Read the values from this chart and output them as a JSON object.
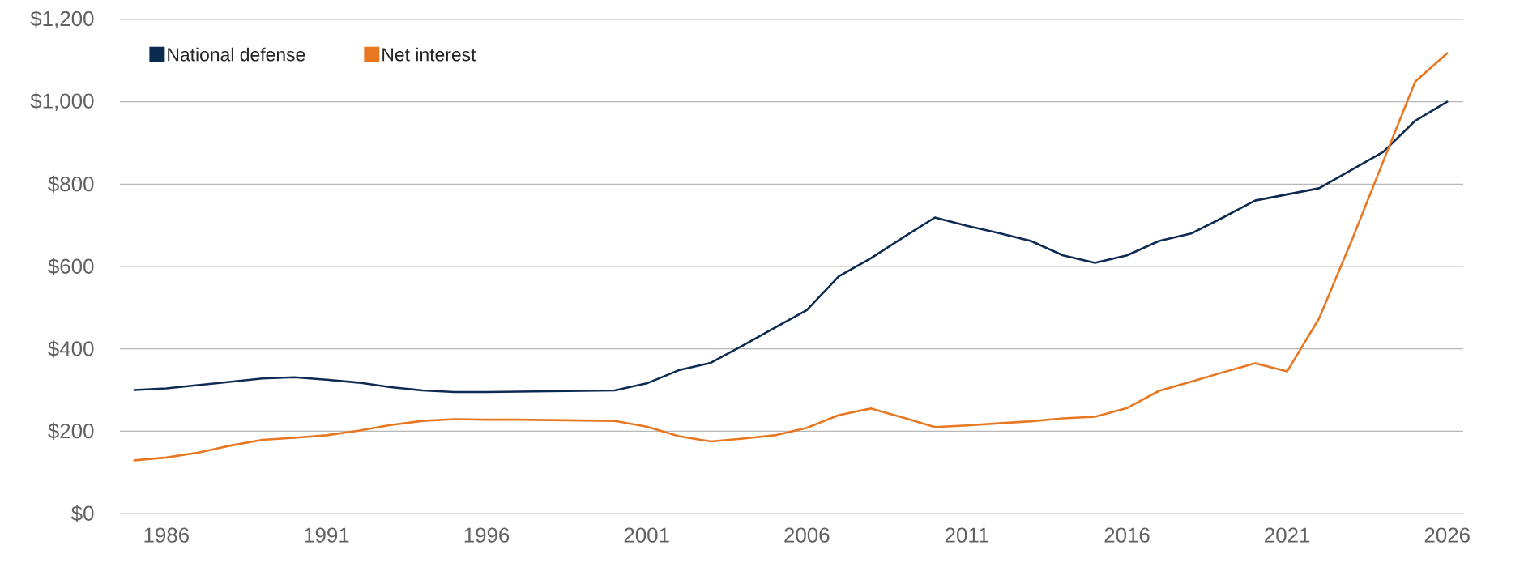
{
  "chart_data": {
    "type": "line",
    "x": [
      1985,
      1986,
      1987,
      1988,
      1989,
      1990,
      1991,
      1992,
      1993,
      1994,
      1995,
      1996,
      1997,
      1998,
      1999,
      2000,
      2001,
      2002,
      2003,
      2004,
      2005,
      2006,
      2007,
      2008,
      2009,
      2010,
      2011,
      2012,
      2013,
      2014,
      2015,
      2016,
      2017,
      2018,
      2019,
      2020,
      2021,
      2022,
      2023,
      2024,
      2025,
      2026
    ],
    "series": [
      {
        "name": "National defense",
        "color": "#0d2b52",
        "values": [
          300,
          304,
          312,
          320,
          328,
          331,
          325,
          318,
          307,
          299,
          295,
          295,
          296,
          297,
          298,
          299,
          316,
          348,
          366,
          408,
          451,
          494,
          576,
          620,
          670,
          719,
          699,
          681,
          662,
          627,
          609,
          627,
          662,
          680,
          719,
          760,
          775,
          790,
          834,
          878,
          954,
          1000
        ]
      },
      {
        "name": "Net interest",
        "color": "#e87722",
        "values": [
          129,
          136,
          148,
          165,
          179,
          184,
          190,
          201,
          215,
          225,
          229,
          228,
          228,
          227,
          226,
          225,
          211,
          188,
          175,
          182,
          190,
          208,
          239,
          255,
          233,
          210,
          214,
          219,
          224,
          231,
          235,
          256,
          298,
          320,
          343,
          365,
          345,
          474,
          660,
          855,
          1049,
          1118
        ]
      }
    ],
    "xlim": [
      1984.55,
      2026.5
    ],
    "ylim": [
      0,
      1200
    ],
    "xticks": [
      1986,
      1991,
      1996,
      2001,
      2006,
      2011,
      2016,
      2021,
      2026
    ],
    "yticks": [
      {
        "value": 0,
        "label": "$0"
      },
      {
        "value": 200,
        "label": "$200"
      },
      {
        "value": 400,
        "label": "$400"
      },
      {
        "value": 600,
        "label": "$600"
      },
      {
        "value": 800,
        "label": "$800"
      },
      {
        "value": 1000,
        "label": "$1,000"
      },
      {
        "value": 1200,
        "label": "$1,200"
      }
    ],
    "grid": "y",
    "legend": "top left",
    "line_style": "solid"
  }
}
